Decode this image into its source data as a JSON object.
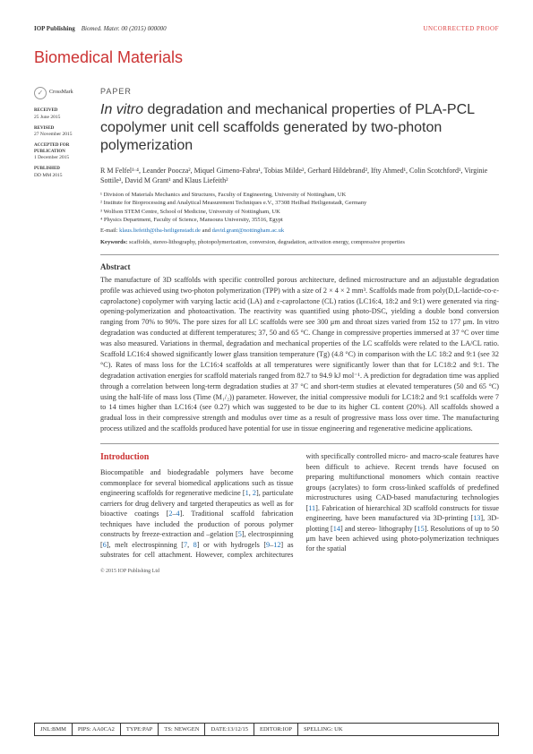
{
  "header": {
    "publisher": "IOP Publishing",
    "journal_ref": "Biomed. Mater. 00 (2015) 000000",
    "proof_notice": "UNCORRECTED PROOF"
  },
  "journal_title": "Biomedical Materials",
  "sidebar": {
    "crossmark": "CrossMark",
    "received_lbl": "RECEIVED",
    "received": "25 June 2015",
    "revised_lbl": "REVISED",
    "revised": "27 November 2015",
    "accepted_lbl": "ACCEPTED FOR PUBLICATION",
    "accepted": "1 December 2015",
    "published_lbl": "PUBLISHED",
    "published": "DD MM 2015"
  },
  "paper": {
    "label": "PAPER",
    "title_prefix": "In vitro",
    "title_rest": " degradation and mechanical properties of PLA-PCL copolymer unit cell scaffolds generated by two-photon polymerization",
    "authors": "R M Felfel¹·⁴, Leander Poocza², Miquel Gimeno-Fabra¹, Tobias Milde², Gerhard Hildebrand², Ifty Ahmed¹, Colin Scotchford¹, Virginie Sottile³, David M Grant¹ and Klaus Liefeith²",
    "affiliations": [
      "¹ Division of Materials Mechanics and Structures, Faculty of Engineering, University of Nottingham, UK",
      "² Institute for Bioprocessing and Analytical Measurement Techniques e.V., 37308 Heilbad Heiligenstadt, Germany",
      "³ Wolfson STEM Centre, School of Medicine, University of Nottingham, UK",
      "⁴ Physics Department, Faculty of Science, Mansoura University, 35516, Egypt"
    ],
    "email_prefix": "E-mail: ",
    "email1": "klaus.liefeith@iba-heiligenstadt.de",
    "email_and": " and ",
    "email2": "david.grant@nottingham.ac.uk",
    "keywords_lbl": "Keywords: ",
    "keywords": "scaffolds, stereo-lithography, photopolymerization, conversion, degradation, activation energy, compressive properties"
  },
  "abstract": {
    "heading": "Abstract",
    "body": "The manufacture of 3D scaffolds with specific controlled porous architecture, defined microstructure and an adjustable degradation profile was achieved using two-photon polymerization (TPP) with a size of 2 × 4 × 2 mm³. Scaffolds made from poly(D,L-lactide-co-ε-caprolactone) copolymer with varying lactic acid (LA) and ε-caprolactone (CL) ratios (LC16:4, 18:2 and 9:1) were generated via ring-opening-polymerization and photoactivation. The reactivity was quantified using photo-DSC, yielding a double bond conversion ranging from 70% to 90%. The pore sizes for all LC scaffolds were see 300 μm and throat sizes varied from 152 to 177 μm. In vitro degradation was conducted at different temperatures; 37, 50 and 65 °C. Change in compressive properties immersed at 37 °C over time was also measured. Variations in thermal, degradation and mechanical properties of the LC scaffolds were related to the LA/CL ratio. Scaffold LC16:4 showed significantly lower glass transition temperature (Tg) (4.8 °C) in comparison with the LC 18:2 and 9:1 (see 32 °C). Rates of mass loss for the LC16:4 scaffolds at all temperatures were significantly lower than that for LC18:2 and 9:1. The degradation activation energies for scaffold materials ranged from 82.7 to 94.9 kJ mol⁻¹. A prediction for degradation time was applied through a correlation between long-term degradation studies at 37 °C and short-term studies at elevated temperatures (50 and 65 °C) using the half-life of mass loss (Time (M₁/₂)) parameter. However, the initial compressive moduli for LC18:2 and 9:1 scaffolds were 7 to 14 times higher than LC16:4 (see 0.27) which was suggested to be due to its higher CL content (20%). All scaffolds showed a gradual loss in their compressive strength and modulus over time as a result of progressive mass loss over time. The manufacturing process utilized and the scaffolds produced have potential for use in tissue engineering and regenerative medicine applications."
  },
  "intro": {
    "heading": "Introduction",
    "body_pre": "Biocompatible and biodegradable polymers have become commonplace for several biomedical applications such as tissue engineering scaffolds for regenerative medicine [",
    "r1": "1",
    "c1": ", ",
    "r2": "2",
    "body_mid1": "], particulate carriers for drug delivery and targeted therapeutics as well as for bioactive coatings [",
    "r3": "2",
    "dash1": "–",
    "r4": "4",
    "body_mid2": "]. Traditional scaffold fabrication techniques have included the production of porous polymer constructs by freeze-extraction and –gelation [",
    "r5": "5",
    "body_mid3": "], electrospinning [",
    "r6": "6",
    "body_mid4": "], melt electrospinning [",
    "r7": "7",
    "c2": ", ",
    "r8": "8",
    "body_mid5": "] or with hydrogels [",
    "r9": "9",
    "dash2": "–",
    "r10": "12",
    "body_mid6": "] as substrates for cell attachment. However, complex architectures with specifically controlled micro- and macro-scale features have been difficult to achieve. Recent trends have focused on preparing multifunctional monomers which contain reactive groups (acrylates) to form cross-linked scaffolds of predefined microstructures using CAD-based manufacturing technologies [",
    "r11": "11",
    "body_mid7": "]. Fabrication of hierarchical 3D scaffold constructs for tissue engineering, have been manufactured via 3D-printing [",
    "r13": "13",
    "body_mid8": "], 3D-plotting [",
    "r14": "14",
    "body_mid9": "] and stereo- lithography [",
    "r15": "15",
    "body_end": "]. Resolutions of up to 50 μm have been achieved using photo-polymerization techniques for the spatial"
  },
  "copyright": "© 2015 IOP Publishing Ltd",
  "footer": {
    "jnl": "JNL:BMM",
    "pips": "PIPS: AA0CA2",
    "type": "TYPE:PAP",
    "ts": "TS: NEWGEN",
    "date": "DATE:13/12/15",
    "editor": "EDITOR:IOP",
    "spelling": "SPELLING: UK"
  }
}
